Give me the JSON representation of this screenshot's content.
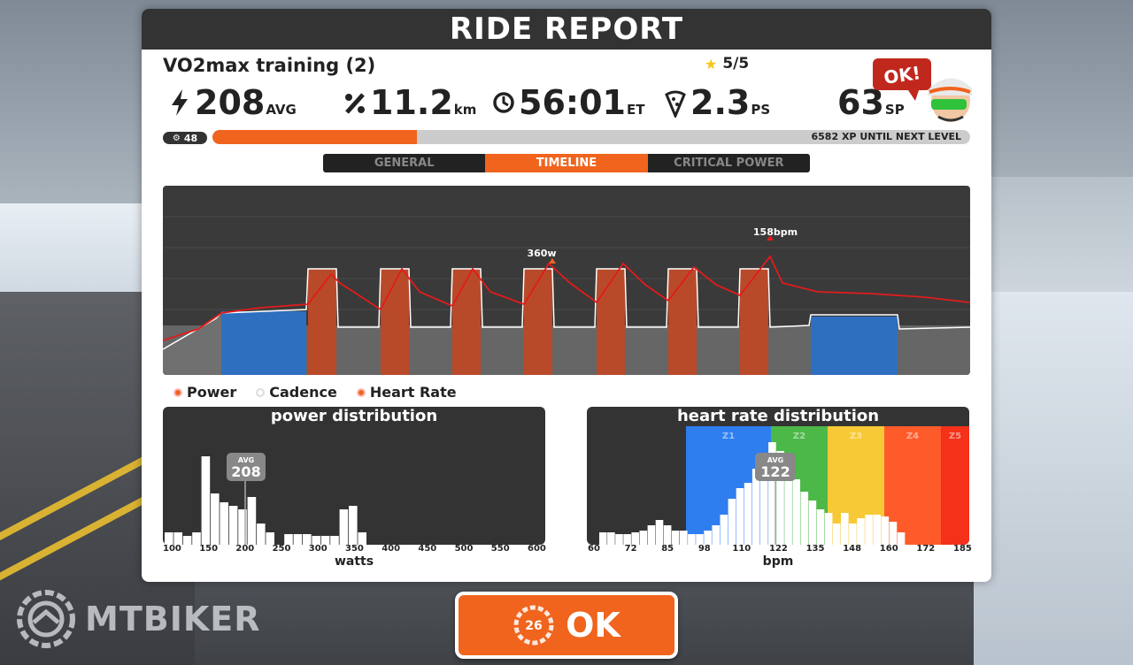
{
  "title": "RIDE REPORT",
  "ride_name": "VO2max training (2)",
  "rating": "5/5",
  "stats": [
    {
      "icon": "lightning-icon",
      "value": "208",
      "unit": "AVG"
    },
    {
      "icon": "distance-icon",
      "value": "11.2",
      "unit": "km"
    },
    {
      "icon": "clock-icon",
      "value": "56:01",
      "unit": "ET"
    },
    {
      "icon": "pizza-icon",
      "value": "2.3",
      "unit": "PS"
    },
    {
      "icon": "",
      "value": "63",
      "unit": "SP"
    }
  ],
  "avatar_badge": "OK!",
  "level": "48",
  "xp": {
    "progress": 0.27,
    "text": "6582 XP UNTIL NEXT LEVEL"
  },
  "tabs": [
    {
      "label": "GENERAL",
      "active": false
    },
    {
      "label": "TIMELINE",
      "active": true
    },
    {
      "label": "CRITICAL POWER",
      "active": false
    }
  ],
  "timeline": {
    "peak_power_label": "360w",
    "peak_hr_label": "158bpm"
  },
  "legend": [
    {
      "label": "Power",
      "on": true
    },
    {
      "label": "Cadence",
      "on": false
    },
    {
      "label": "Heart Rate",
      "on": true
    }
  ],
  "power_distribution": {
    "title": "power distribution",
    "avg_label": "AVG",
    "avg_value": "208",
    "ticks": [
      "100",
      "150",
      "200",
      "250",
      "300",
      "350",
      "400",
      "450",
      "500",
      "550",
      "600"
    ],
    "xlabel": "watts"
  },
  "hr_distribution": {
    "title": "heart rate distribution",
    "avg_label": "AVG",
    "avg_value": "122",
    "zones": [
      "Z1",
      "Z2",
      "Z3",
      "Z4",
      "Z5"
    ],
    "zone_colors": [
      "#2f7ef0",
      "#4cb848",
      "#f7c936",
      "#ff5b2a",
      "#f5311a"
    ],
    "ticks": [
      "60",
      "72",
      "85",
      "98",
      "110",
      "122",
      "135",
      "148",
      "160",
      "172",
      "185"
    ],
    "xlabel": "bpm"
  },
  "ok_button": {
    "timer": "26",
    "label": "OK"
  },
  "watermark": "MTBIKER",
  "colors": {
    "accent": "#f0641e",
    "panel_dark": "#333333",
    "power_block": "#2f6fc0",
    "interval_block": "#b84a2a"
  }
}
